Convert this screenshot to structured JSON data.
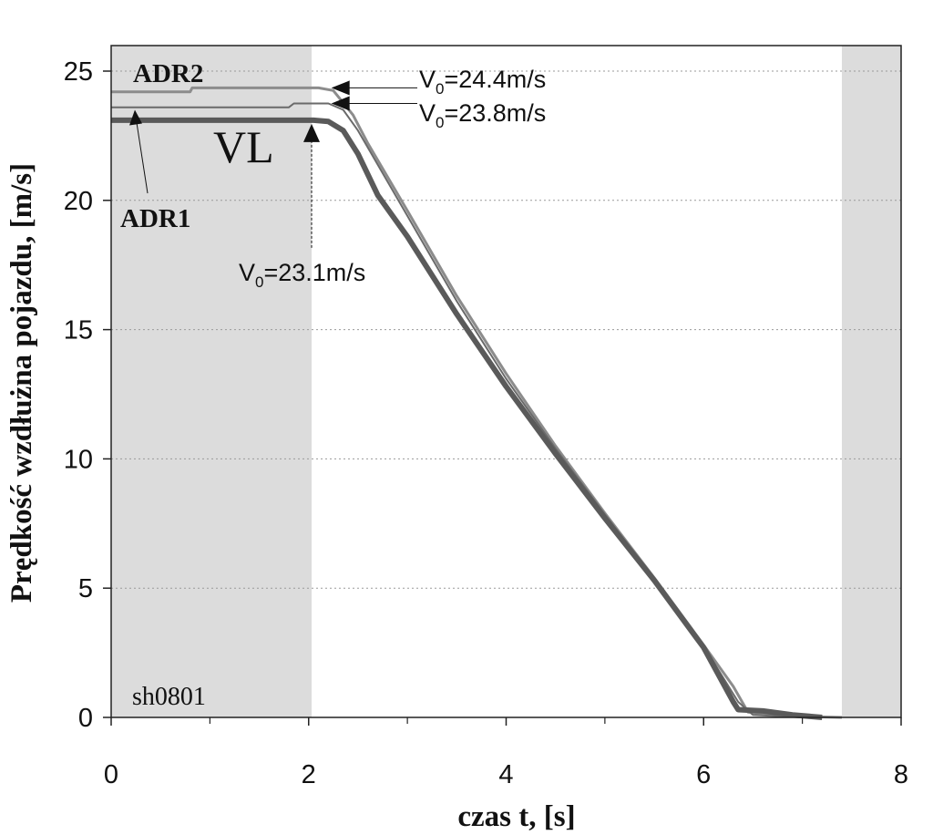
{
  "chart_data": {
    "type": "line",
    "id_label": "sh0801",
    "xlabel": "czas t, [s]",
    "ylabel": "Prędkość wzdłużna pojazdu, [m/s]",
    "xlim": [
      0,
      8
    ],
    "ylim": [
      0,
      25.5
    ],
    "xticks": [
      0,
      2,
      4,
      6,
      8
    ],
    "yticks": [
      0,
      5,
      10,
      15,
      20,
      25
    ],
    "grid": "horizontal dotted",
    "shaded_regions": [
      {
        "x0": 0,
        "x1": 2.03
      },
      {
        "x0": 7.4,
        "x1": 8
      }
    ],
    "series": [
      {
        "name": "ADR2",
        "color": "#8c8c8c",
        "points": [
          [
            0,
            24.2
          ],
          [
            0.8,
            24.2
          ],
          [
            0.82,
            24.35
          ],
          [
            2.1,
            24.35
          ],
          [
            2.25,
            24.25
          ],
          [
            2.45,
            23.3
          ],
          [
            2.6,
            22.2
          ],
          [
            3.0,
            19.6
          ],
          [
            3.5,
            16.3
          ],
          [
            4.0,
            13.3
          ],
          [
            4.5,
            10.5
          ],
          [
            5.0,
            7.9
          ],
          [
            5.5,
            5.4
          ],
          [
            6.0,
            2.8
          ],
          [
            6.3,
            1.2
          ],
          [
            6.45,
            0.2
          ],
          [
            6.9,
            0.05
          ],
          [
            7.4,
            0.0
          ]
        ]
      },
      {
        "name": "ADR1",
        "color": "#6a6a6a",
        "points": [
          [
            0,
            23.6
          ],
          [
            1.8,
            23.6
          ],
          [
            1.85,
            23.75
          ],
          [
            2.2,
            23.75
          ],
          [
            2.35,
            23.5
          ],
          [
            2.5,
            22.7
          ],
          [
            3.0,
            19.4
          ],
          [
            3.5,
            16.1
          ],
          [
            4.0,
            13.1
          ],
          [
            4.5,
            10.4
          ],
          [
            5.0,
            7.85
          ],
          [
            5.5,
            5.35
          ],
          [
            6.0,
            2.75
          ],
          [
            6.35,
            0.6
          ],
          [
            6.5,
            0.1
          ],
          [
            7.0,
            0.0
          ]
        ]
      },
      {
        "name": "VL",
        "color": "#5a5a5a",
        "points": [
          [
            0,
            23.1
          ],
          [
            2.05,
            23.1
          ],
          [
            2.2,
            23.05
          ],
          [
            2.35,
            22.7
          ],
          [
            2.5,
            21.8
          ],
          [
            2.7,
            20.2
          ],
          [
            3.0,
            18.6
          ],
          [
            3.5,
            15.6
          ],
          [
            4.0,
            12.8
          ],
          [
            4.5,
            10.2
          ],
          [
            5.0,
            7.7
          ],
          [
            5.5,
            5.3
          ],
          [
            6.0,
            2.7
          ],
          [
            6.3,
            0.6
          ],
          [
            6.35,
            0.3
          ],
          [
            6.6,
            0.25
          ],
          [
            6.9,
            0.1
          ],
          [
            7.2,
            0.0
          ]
        ]
      }
    ],
    "annotations": [
      {
        "name": "v0-adr2",
        "base": "V",
        "sub": "0",
        "rest": "=24.4m/s",
        "x": 2.23,
        "y": 24.35
      },
      {
        "name": "v0-adr1",
        "base": "V",
        "sub": "0",
        "rest": "=23.8m/s",
        "x": 2.23,
        "y": 23.75
      },
      {
        "name": "v0-vl",
        "base": "V",
        "sub": "0",
        "rest": "=23.1m/s",
        "x": 2.03,
        "y": 23.1
      }
    ]
  }
}
